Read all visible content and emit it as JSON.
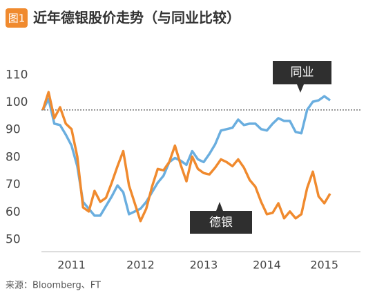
{
  "chart_data": {
    "type": "line",
    "badge": "图1",
    "title": "近年德银股价走势（与同业比较）",
    "source": "来源：Bloomberg、FT",
    "categories": [
      null,
      null,
      null,
      null,
      null,
      "2011",
      null,
      null,
      null,
      null,
      null,
      null,
      null,
      null,
      null,
      null,
      null,
      "2012",
      null,
      null,
      null,
      null,
      null,
      null,
      null,
      null,
      null,
      null,
      "2013",
      null,
      null,
      null,
      null,
      null,
      null,
      null,
      null,
      null,
      null,
      "2014",
      null,
      null,
      null,
      null,
      null,
      null,
      null,
      null,
      null,
      "2015",
      null
    ],
    "series": [
      {
        "name": "德银",
        "color": "#f08a2e",
        "values": [
          100,
          106.5,
          97,
          101,
          95,
          93,
          83,
          64.5,
          63,
          70.5,
          66.5,
          68,
          73.5,
          79.5,
          85,
          72.5,
          66,
          59.5,
          64,
          72,
          78.5,
          78,
          81,
          87,
          80,
          74,
          83,
          78.5,
          77,
          76.5,
          79,
          82,
          81,
          79.5,
          82,
          79,
          74.5,
          72,
          66.5,
          62,
          62.5,
          66,
          60.5,
          63,
          60.5,
          62,
          71.5,
          77.5,
          68.5,
          66,
          69.5
        ]
      },
      {
        "name": "同业",
        "color": "#6aaedf",
        "values": [
          100,
          104,
          95,
          94.5,
          91,
          87,
          79.5,
          66.5,
          64,
          61.5,
          61.5,
          65,
          68.5,
          72.5,
          70,
          62,
          63,
          64,
          66.5,
          70,
          73.5,
          76,
          81,
          82.5,
          81.5,
          80,
          85,
          82,
          81,
          84,
          87.5,
          92.5,
          93,
          93.5,
          96.5,
          94.5,
          95,
          95,
          93,
          92.5,
          95,
          97,
          96,
          96,
          92,
          91.5,
          100,
          103,
          103.5,
          105,
          103.5
        ]
      }
    ],
    "reference_line": 100,
    "ylim": [
      48,
      112
    ],
    "yticks": [
      50,
      60,
      70,
      80,
      90,
      100,
      110
    ]
  }
}
